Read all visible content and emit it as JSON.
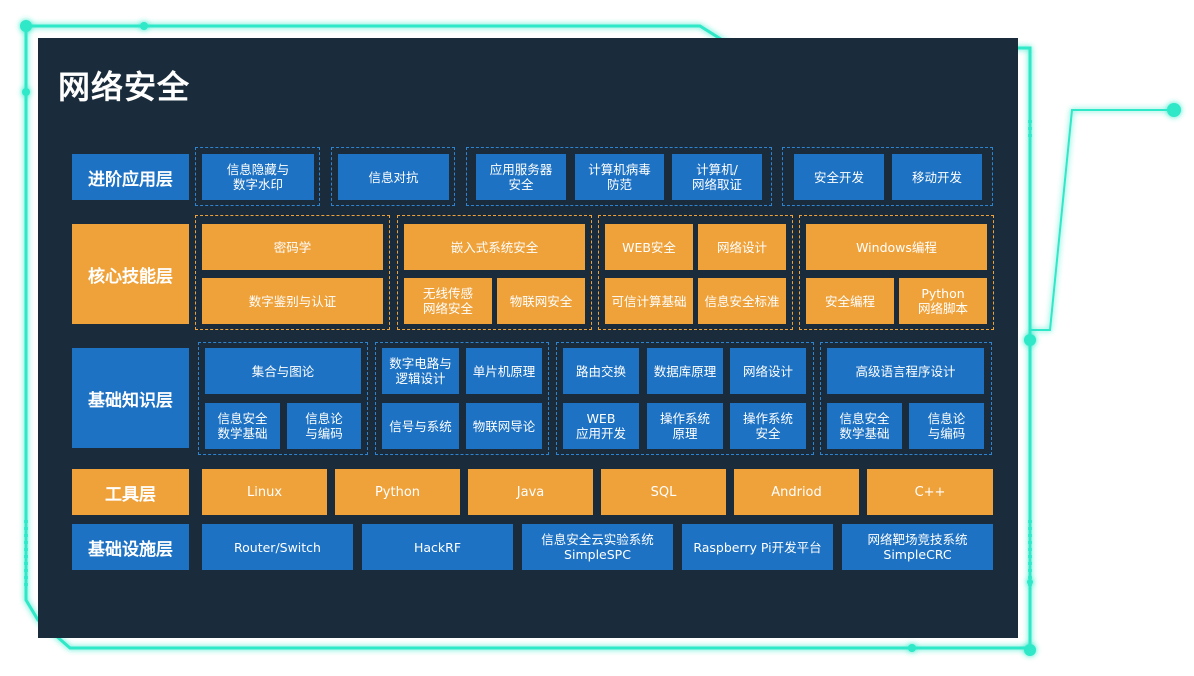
{
  "title": "网络安全",
  "layers": {
    "advanced": "进阶应用层",
    "core": "核心技能层",
    "basic": "基础知识层",
    "tools": "工具层",
    "infra": "基础设施层"
  },
  "advanced": [
    "信息隐藏与\n数字水印",
    "信息对抗",
    "应用服务器\n安全",
    "计算机病毒\n防范",
    "计算机/\n网络取证",
    "安全开发",
    "移动开发"
  ],
  "core": [
    "密码学",
    "数字鉴别与认证",
    "嵌入式系统安全",
    "无线传感\n网络安全",
    "物联网安全",
    "WEB安全",
    "网络设计",
    "可信计算基础",
    "信息安全标准",
    "Windows编程",
    "安全编程",
    "Python\n网络脚本"
  ],
  "basic": [
    "集合与图论",
    "信息安全\n数学基础",
    "信息论\n与编码",
    "数字电路与\n逻辑设计",
    "单片机原理",
    "信号与系统",
    "物联网导论",
    "路由交换",
    "数据库原理",
    "网络设计",
    "WEB\n应用开发",
    "操作系统\n原理",
    "操作系统\n安全",
    "高级语言程序设计",
    "信息安全\n数学基础",
    "信息论\n与编码"
  ],
  "tools": [
    "Linux",
    "Python",
    "Java",
    "SQL",
    "Andriod",
    "C++"
  ],
  "infra": [
    "Router/Switch",
    "HackRF",
    "信息安全云实验系统\nSimpleSPC",
    "Raspberry Pi开发平台",
    "网络靶场竞技系统\nSimpleCRC"
  ],
  "colors": {
    "panel": "#1a2c3c",
    "blue": "#1d72c4",
    "orange": "#f0a23a",
    "glow": "#2ee8c8"
  }
}
